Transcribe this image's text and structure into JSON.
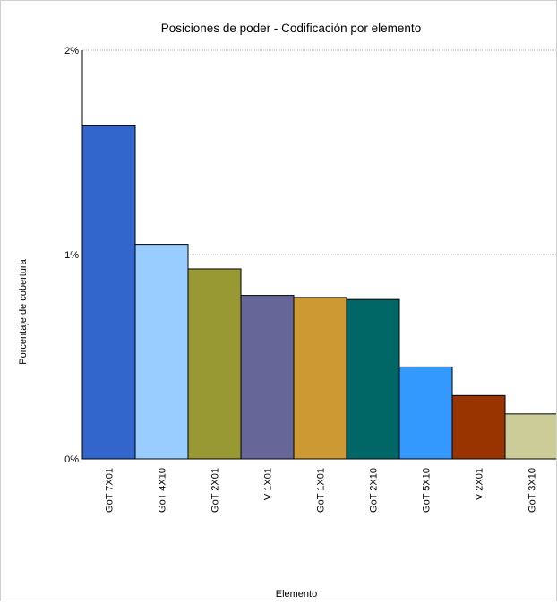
{
  "chart_data": {
    "type": "bar",
    "title": "Posiciones de poder - Codificación por elemento",
    "xlabel": "Elemento",
    "ylabel": "Porcentaje de cobertura",
    "ylim": [
      0,
      2
    ],
    "yticks": [
      {
        "value": 0,
        "label": "0%"
      },
      {
        "value": 1,
        "label": "1%"
      },
      {
        "value": 2,
        "label": "2%"
      }
    ],
    "grid": true,
    "legend": "none",
    "categories": [
      "GoT 7X01",
      "GoT 4X10",
      "GoT 2X01",
      "V 1X01",
      "GoT 1X01",
      "GoT 2X10",
      "GoT 5X10",
      "V 2X01",
      "GoT 3X10"
    ],
    "values": [
      1.63,
      1.05,
      0.93,
      0.8,
      0.79,
      0.78,
      0.45,
      0.31,
      0.22
    ],
    "colors": [
      "#3366cc",
      "#99ccff",
      "#999933",
      "#666699",
      "#cc9933",
      "#006666",
      "#3399ff",
      "#993300",
      "#cccc99"
    ]
  }
}
